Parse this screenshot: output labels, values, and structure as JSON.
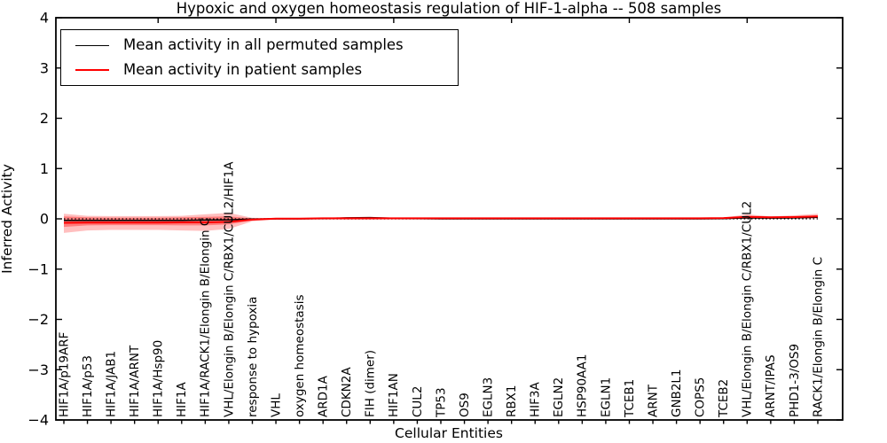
{
  "chart_data": {
    "type": "line",
    "title": "Hypoxic and oxygen homeostasis regulation of HIF-1-alpha -- 508 samples",
    "xlabel": "Cellular Entities",
    "ylabel": "Inferred Activity",
    "ylim": [
      -4,
      4
    ],
    "yticks": [
      -4,
      -3,
      -2,
      -1,
      0,
      1,
      2,
      3,
      4
    ],
    "ytick_labels": [
      "−4",
      "−3",
      "−2",
      "−1",
      "0",
      "1",
      "2",
      "3",
      "4"
    ],
    "grid": false,
    "legend_position": "upper left",
    "categories": [
      "HIF1A/p19ARF",
      "HIF1A/p53",
      "HIF1A/JAB1",
      "HIF1A/ARNT",
      "HIF1A/Hsp90",
      "HIF1A",
      "HIF1A/RACK1/Elongin B/Elongin C",
      "VHL/Elongin B/Elongin C/RBX1/CUL2/HIF1A",
      "response to hypoxia",
      "VHL",
      "oxygen homeostasis",
      "ARD1A",
      "CDKN2A",
      "FIH (dimer)",
      "HIF1AN",
      "CUL2",
      "TP53",
      "OS9",
      "EGLN3",
      "RBX1",
      "HIF3A",
      "EGLN2",
      "HSP90AA1",
      "EGLN1",
      "TCEB1",
      "ARNT",
      "GNB2L1",
      "COPS5",
      "TCEB2",
      "VHL/Elongin B/Elongin C/RBX1/CUL2",
      "ARNT/IPAS",
      "PHD1-3/OS9",
      "RACK1/Elongin B/Elongin C"
    ],
    "series": [
      {
        "name": "Mean activity in all permuted samples",
        "color": "#000000",
        "values": [
          -0.03,
          -0.03,
          -0.03,
          -0.03,
          -0.03,
          -0.03,
          -0.025,
          -0.02,
          -0.005,
          0,
          0,
          0.005,
          0.02,
          0.025,
          0.01,
          0.005,
          0,
          0,
          0,
          0,
          0,
          0,
          0,
          0,
          0,
          0,
          0,
          0,
          0.005,
          0.02,
          0.015,
          0.02,
          0.03
        ]
      },
      {
        "name": "Mean activity in patient samples",
        "color": "#ff0000",
        "values": [
          -0.08,
          -0.075,
          -0.075,
          -0.075,
          -0.075,
          -0.07,
          -0.07,
          -0.06,
          -0.015,
          0.005,
          0.005,
          0.01,
          0.01,
          0.01,
          0.01,
          0.01,
          0.01,
          0.01,
          0.01,
          0.01,
          0.01,
          0.01,
          0.01,
          0.01,
          0.01,
          0.01,
          0.01,
          0.01,
          0.015,
          0.04,
          0.03,
          0.035,
          0.05
        ]
      }
    ],
    "bands": [
      {
        "name": "patient samples spread (outer)",
        "color": "#ff0000",
        "opacity": 0.25,
        "upper": [
          0.1,
          0.06,
          0.055,
          0.055,
          0.055,
          0.06,
          0.09,
          0.12,
          0.02,
          0.015,
          0.015,
          0.02,
          0.035,
          0.04,
          0.025,
          0.02,
          0.015,
          0.015,
          0.015,
          0.015,
          0.015,
          0.015,
          0.015,
          0.015,
          0.015,
          0.015,
          0.015,
          0.015,
          0.025,
          0.09,
          0.05,
          0.07,
          0.1
        ],
        "lower": [
          -0.28,
          -0.23,
          -0.22,
          -0.22,
          -0.22,
          -0.23,
          -0.24,
          -0.2,
          -0.05,
          -0.01,
          -0.01,
          -0.01,
          -0.015,
          -0.015,
          -0.01,
          -0.01,
          -0.005,
          -0.005,
          -0.005,
          -0.005,
          -0.005,
          -0.005,
          -0.005,
          -0.005,
          -0.005,
          -0.005,
          -0.005,
          -0.005,
          -0.005,
          -0.005,
          -0.005,
          0.0,
          0.01
        ]
      },
      {
        "name": "patient samples spread (inner)",
        "color": "#ff0000",
        "opacity": 0.35,
        "upper": [
          0.05,
          0.03,
          0.025,
          0.025,
          0.025,
          0.03,
          0.04,
          0.05,
          0.01,
          0.01,
          0.01,
          0.012,
          0.02,
          0.025,
          0.015,
          0.012,
          0.01,
          0.01,
          0.01,
          0.01,
          0.01,
          0.01,
          0.01,
          0.01,
          0.01,
          0.01,
          0.01,
          0.01,
          0.018,
          0.06,
          0.04,
          0.05,
          0.07
        ],
        "lower": [
          -0.16,
          -0.13,
          -0.125,
          -0.125,
          -0.125,
          -0.13,
          -0.13,
          -0.11,
          -0.03,
          -0.005,
          -0.005,
          -0.005,
          -0.008,
          -0.008,
          -0.005,
          -0.005,
          -0.003,
          -0.003,
          -0.003,
          -0.003,
          -0.003,
          -0.003,
          -0.003,
          -0.003,
          -0.003,
          -0.003,
          -0.003,
          -0.003,
          0.0,
          0.01,
          0.005,
          0.008,
          0.015
        ]
      }
    ],
    "zero_line": {
      "y": 0,
      "style": "dotted",
      "color": "#000000"
    }
  }
}
